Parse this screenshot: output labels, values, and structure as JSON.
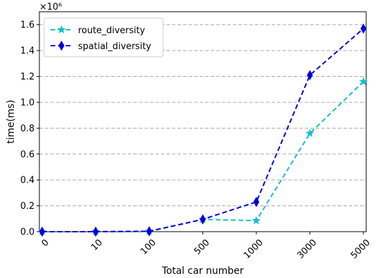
{
  "chart_data": {
    "type": "line",
    "categories": [
      "0",
      "10",
      "100",
      "500",
      "1000",
      "3000",
      "5000"
    ],
    "series": [
      {
        "name": "route_diversity",
        "color": "#17becf",
        "marker": "star",
        "values": [
          0,
          0,
          3000,
          95000,
          85000,
          760000,
          1160000
        ]
      },
      {
        "name": "spatial_diversity",
        "color": "#0000d8",
        "marker": "thin_diamond",
        "values": [
          0,
          0,
          3000,
          95000,
          230000,
          1210000,
          1570000
        ]
      }
    ],
    "xlabel": "Total car number",
    "ylabel": "time(ms)",
    "y_scale_label": "×10⁶",
    "ylim": [
      0,
      1700000
    ],
    "yticks": [
      0,
      200000,
      400000,
      600000,
      800000,
      1000000,
      1200000,
      1400000,
      1600000
    ],
    "ytick_labels": [
      "0.0",
      "0.2",
      "0.4",
      "0.6",
      "0.8",
      "1.0",
      "1.2",
      "1.4",
      "1.6"
    ],
    "grid": "horizontal dashed",
    "legend_position": "top-left"
  }
}
